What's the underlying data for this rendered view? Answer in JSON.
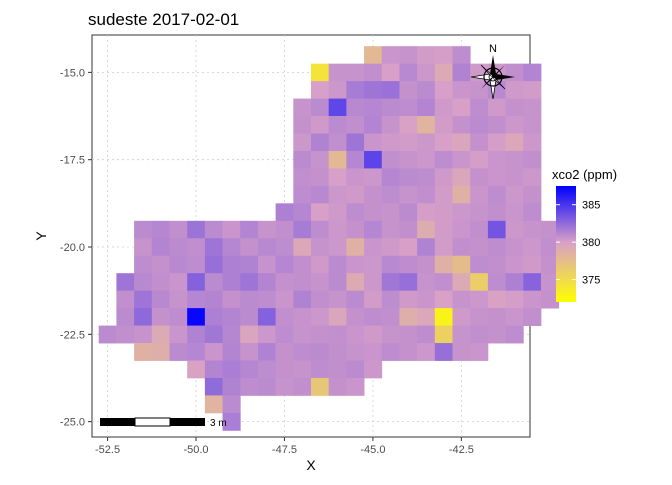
{
  "chart_data": {
    "type": "heatmap",
    "title": "sudeste 2017-02-01",
    "xlabel": "X",
    "ylabel": "Y",
    "xlim": [
      -52.94,
      -40.56
    ],
    "ylim": [
      -25.44,
      -13.93
    ],
    "xticks": [
      -52.5,
      -50.0,
      -47.5,
      -45.0,
      -42.5
    ],
    "xtick_labels": [
      "-52.5",
      "-50.0",
      "-47.5",
      "-45.0",
      "-42.5"
    ],
    "yticks": [
      -25.0,
      -22.5,
      -20.0,
      -17.5,
      -15.0
    ],
    "ytick_labels": [
      "-25.0",
      "-22.5",
      "-20.0",
      "-17.5",
      "-15.0"
    ],
    "grid": true,
    "cell": {
      "dx": 0.5,
      "dy": 0.5
    },
    "rows": [
      {
        "y": -14.5,
        "x0": -45.0,
        "v": [
          377.9,
          380.5,
          380.6,
          380.2,
          380.1,
          380.9
        ]
      },
      {
        "y": -15.0,
        "x0": -46.5,
        "v": [
          374.3,
          380.6,
          380.6,
          380.8,
          380.0,
          381.1,
          380.4,
          379.2,
          381.4,
          380.3,
          380.4,
          380.8,
          381.3
        ]
      },
      {
        "y": -15.5,
        "x0": -46.5,
        "v": [
          380.0,
          380.4,
          381.7,
          382.0,
          382.2,
          380.7,
          381.0,
          380.0,
          380.5,
          380.6,
          381.1,
          380.3,
          380.2
        ]
      },
      {
        "y": -16.0,
        "x0": -47.0,
        "v": [
          380.6,
          381.0,
          384.2,
          381.1,
          381.2,
          381.0,
          380.9,
          381.3,
          380.3,
          380.0,
          380.9,
          380.3,
          380.7,
          380.6
        ]
      },
      {
        "y": -16.5,
        "x0": -47.0,
        "v": [
          380.7,
          380.3,
          381.0,
          380.8,
          381.3,
          380.6,
          379.9,
          378.3,
          380.2,
          380.7,
          381.0,
          380.8,
          380.4,
          380.6
        ]
      },
      {
        "y": -17.0,
        "x0": -47.0,
        "v": [
          380.4,
          381.4,
          380.8,
          382.0,
          380.5,
          380.3,
          380.2,
          380.4,
          380.0,
          379.5,
          380.7,
          380.1,
          379.4,
          380.4
        ]
      },
      {
        "y": -17.5,
        "x0": -47.0,
        "v": [
          381.0,
          380.6,
          377.9,
          381.2,
          384.3,
          380.8,
          380.6,
          380.4,
          380.9,
          380.5,
          380.1,
          380.5,
          380.6,
          380.8
        ]
      },
      {
        "y": -18.0,
        "x0": -47.0,
        "v": [
          380.8,
          380.7,
          380.0,
          380.5,
          380.4,
          381.2,
          381.0,
          380.9,
          380.3,
          379.5,
          380.7,
          380.5,
          380.6,
          380.4
        ]
      },
      {
        "y": -18.5,
        "x0": -47.0,
        "v": [
          380.9,
          381.1,
          380.4,
          380.3,
          380.7,
          380.9,
          380.6,
          380.8,
          380.2,
          378.6,
          380.5,
          380.9,
          380.4,
          380.7
        ]
      },
      {
        "y": -19.0,
        "x0": -47.5,
        "v": [
          381.5,
          381.2,
          380.0,
          380.3,
          380.9,
          380.7,
          380.6,
          381.0,
          380.1,
          380.2,
          380.4,
          380.6,
          380.8,
          380.5,
          380.9
        ]
      },
      {
        "y": -19.5,
        "x0": -51.5,
        "v": [
          381.0,
          381.2,
          380.8,
          382.1,
          381.0,
          380.5,
          381.3,
          380.6,
          380.8,
          381.7,
          380.9,
          380.4,
          380.7,
          381.2,
          380.6,
          380.8,
          379.0,
          380.2,
          380.5,
          380.8,
          383.5,
          380.4,
          380.6,
          380.7
        ]
      },
      {
        "y": -20.0,
        "x0": -51.5,
        "v": [
          380.6,
          381.3,
          381.0,
          380.8,
          382.0,
          381.2,
          380.7,
          381.1,
          380.9,
          379.4,
          380.6,
          380.4,
          378.6,
          380.5,
          380.3,
          380.0,
          381.4,
          380.2,
          380.8,
          380.7,
          380.9,
          380.6,
          380.4,
          380.8
        ]
      },
      {
        "y": -20.5,
        "x0": -51.5,
        "v": [
          380.9,
          380.7,
          381.1,
          380.9,
          382.3,
          381.5,
          381.4,
          380.6,
          381.2,
          380.8,
          380.3,
          381.0,
          380.5,
          380.4,
          381.1,
          380.9,
          380.7,
          378.6,
          377.6,
          380.9,
          380.8,
          380.5,
          380.3,
          380.7
        ]
      },
      {
        "y": -21.0,
        "x0": -52.0,
        "v": [
          382.0,
          381.1,
          380.8,
          380.5,
          382.9,
          381.0,
          381.5,
          382.0,
          381.3,
          380.7,
          380.8,
          380.6,
          381.0,
          379.1,
          380.4,
          381.9,
          382.3,
          380.6,
          380.8,
          379.2,
          376.2,
          380.9,
          381.5,
          382.8,
          380.6
        ]
      },
      {
        "y": -21.5,
        "x0": -52.0,
        "v": [
          380.8,
          382.0,
          381.1,
          380.6,
          381.2,
          381.3,
          380.7,
          381.0,
          380.9,
          380.5,
          381.4,
          380.8,
          380.6,
          381.0,
          380.2,
          380.9,
          380.3,
          380.5,
          379.9,
          380.6,
          380.4,
          379.8,
          380.1,
          380.5,
          380.7
        ]
      },
      {
        "y": -22.0,
        "x0": -52.0,
        "v": [
          381.0,
          382.6,
          380.7,
          380.9,
          387.2,
          381.5,
          381.3,
          381.0,
          382.9,
          380.8,
          380.6,
          380.4,
          379.5,
          380.7,
          380.9,
          380.8,
          378.8,
          379.4,
          373.0,
          380.3,
          380.6,
          380.7,
          380.5,
          380.8
        ]
      },
      {
        "y": -22.5,
        "x0": -52.5,
        "v": [
          381.0,
          380.8,
          380.6,
          379.2,
          380.5,
          381.4,
          381.9,
          381.2,
          379.6,
          380.4,
          380.9,
          380.6,
          380.7,
          380.8,
          380.5,
          380.3,
          380.6,
          380.7,
          380.9,
          375.9,
          380.6,
          380.8,
          380.7,
          380.9
        ]
      },
      {
        "y": -23.0,
        "x0": -51.5,
        "v": [
          378.6,
          378.8,
          381.0,
          381.2,
          380.5,
          381.3,
          380.6,
          381.4,
          380.7,
          380.9,
          381.0,
          380.8,
          380.6,
          380.5,
          380.9,
          380.7,
          380.4,
          382.3,
          380.6,
          380.5
        ]
      },
      {
        "y": -23.5,
        "x0": -50.0,
        "v": [
          379.8,
          381.3,
          381.6,
          381.2,
          380.9,
          380.7,
          380.6,
          380.9,
          380.8,
          381.0,
          380.4
        ]
      },
      {
        "y": -24.0,
        "x0": -49.5,
        "v": [
          382.5,
          381.4,
          380.9,
          381.0,
          380.6,
          380.8,
          376.8,
          380.7,
          380.5
        ]
      },
      {
        "y": -24.5,
        "x0": -49.5,
        "v": [
          378.3,
          381.0
        ]
      },
      {
        "y": -25.0,
        "x0": -49.0,
        "v": [
          381.6
        ]
      }
    ],
    "legend": {
      "title": "xco2 (ppm)",
      "placement": "right",
      "min": 372,
      "max": 387.5,
      "ticks": [
        375,
        380,
        385
      ],
      "tick_labels": [
        "375",
        "380",
        "385"
      ],
      "colors": [
        "#ffff00",
        "#d8a0c8",
        "#0000ff"
      ]
    },
    "north_arrow": "N",
    "scale_bar": "3 m"
  }
}
